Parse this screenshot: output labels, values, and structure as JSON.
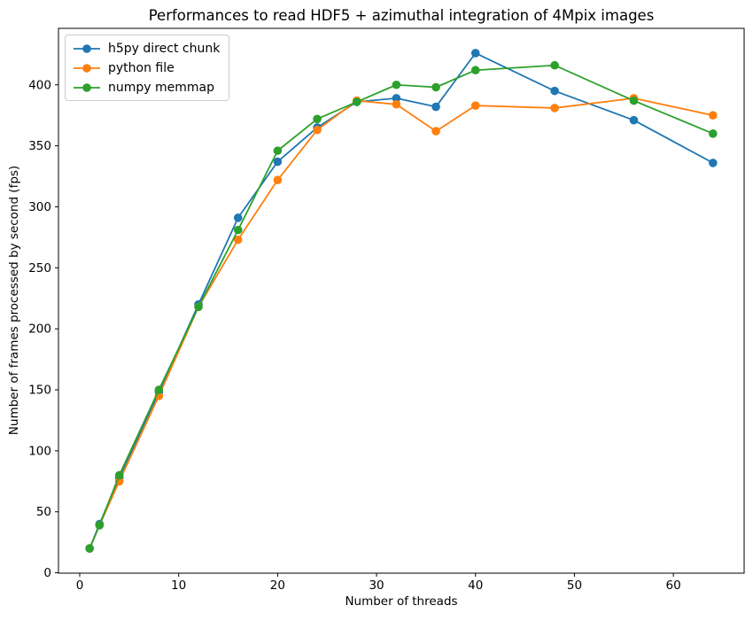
{
  "chart_data": {
    "type": "line",
    "title": "Performances to read HDF5 + azimuthal integration of 4Mpix images",
    "xlabel": "Number of threads",
    "ylabel": "Number of frames processed by second (fps)",
    "marker": "o",
    "grid": false,
    "legend_position": "upper left",
    "xlim": [
      -2.15,
      67.15
    ],
    "ylim": [
      -0.3,
      446.3
    ],
    "xticks": [
      0,
      10,
      20,
      30,
      40,
      50,
      60
    ],
    "yticks": [
      0,
      50,
      100,
      150,
      200,
      250,
      300,
      350,
      400
    ],
    "x": [
      1,
      2,
      4,
      8,
      12,
      16,
      20,
      24,
      28,
      32,
      36,
      40,
      48,
      56,
      64
    ],
    "series": [
      {
        "name": "h5py direct chunk",
        "color": "#1f77b4",
        "values": [
          20,
          40,
          78,
          148,
          220,
          291,
          337,
          365,
          386,
          389,
          382,
          426,
          395,
          371,
          336
        ]
      },
      {
        "name": "python file",
        "color": "#ff7f0e",
        "values": [
          20,
          39,
          75,
          145,
          218,
          273,
          322,
          363,
          387,
          384,
          362,
          383,
          381,
          389,
          375
        ]
      },
      {
        "name": "numpy memmap",
        "color": "#2ca02c",
        "values": [
          20,
          39,
          80,
          150,
          218,
          281,
          346,
          372,
          386,
          400,
          398,
          412,
          416,
          387,
          360
        ]
      }
    ]
  }
}
